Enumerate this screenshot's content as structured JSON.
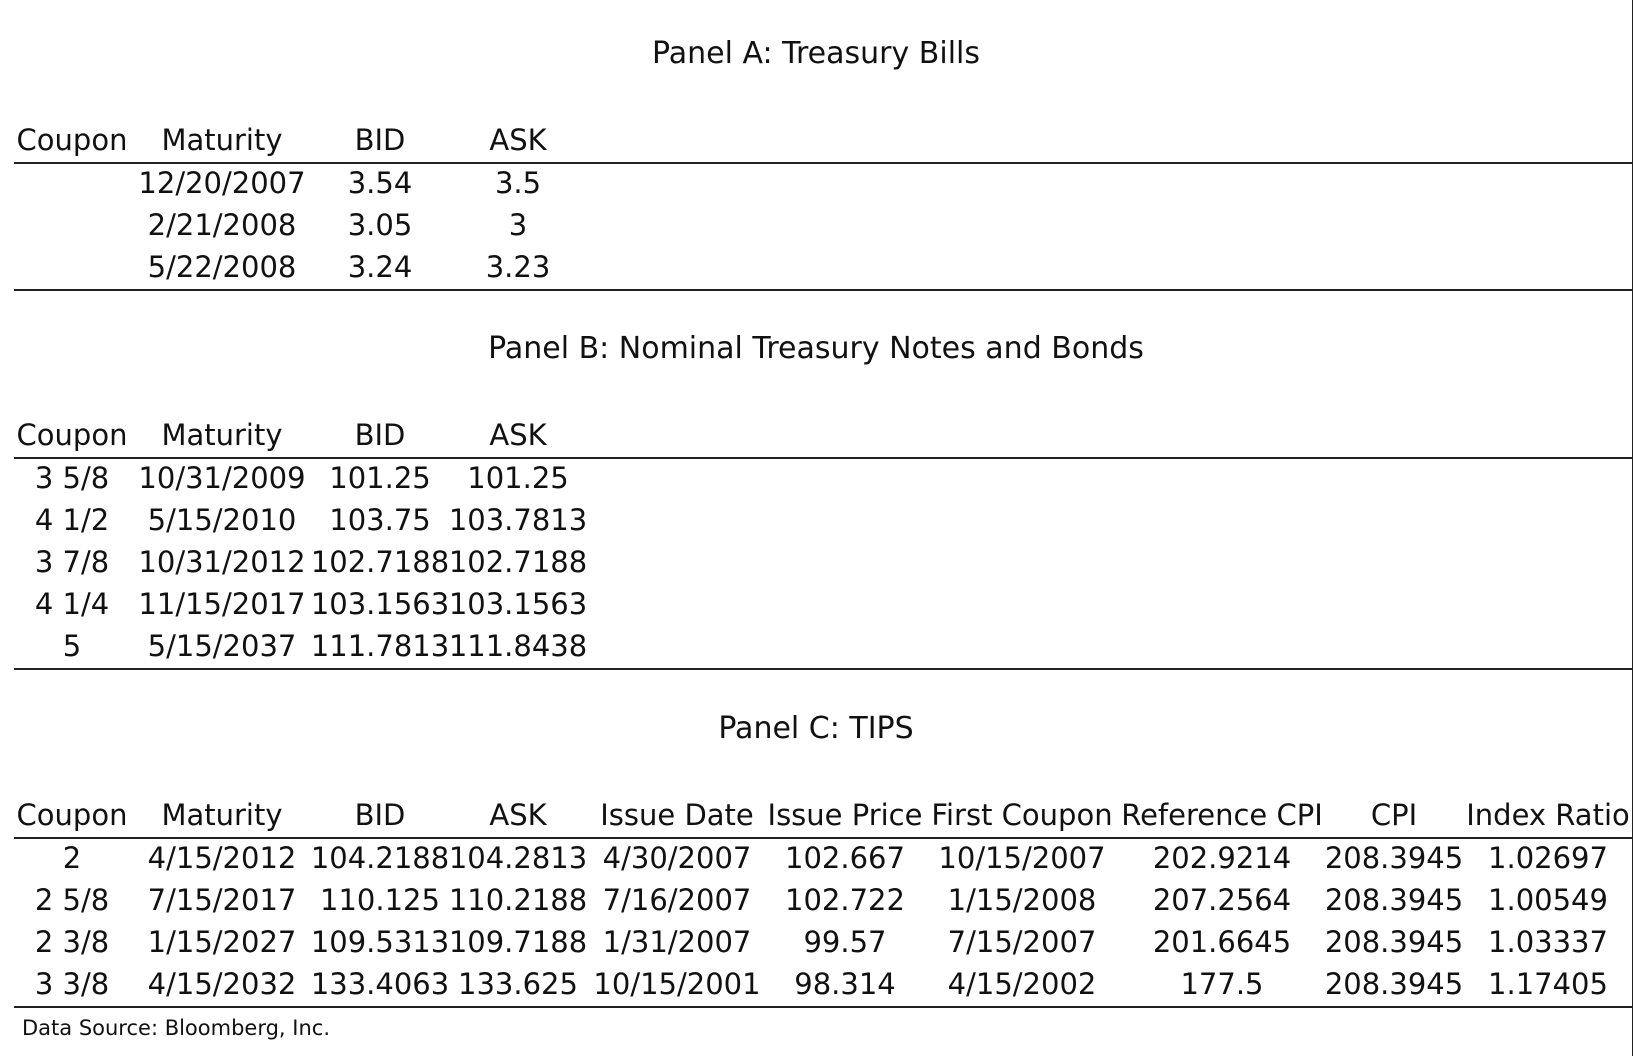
{
  "panels": [
    {
      "title": "Panel A: Treasury Bills",
      "headers": [
        "Coupon",
        "Maturity",
        "BID",
        "ASK"
      ],
      "rows": [
        [
          "",
          "12/20/2007",
          "3.54",
          "3.5"
        ],
        [
          "",
          "2/21/2008",
          "3.05",
          "3"
        ],
        [
          "",
          "5/22/2008",
          "3.24",
          "3.23"
        ]
      ]
    },
    {
      "title": "Panel B: Nominal Treasury Notes and Bonds",
      "headers": [
        "Coupon",
        "Maturity",
        "BID",
        "ASK"
      ],
      "rows": [
        [
          "3 5/8",
          "10/31/2009",
          "101.25",
          "101.25"
        ],
        [
          "4 1/2",
          "5/15/2010",
          "103.75",
          "103.7813"
        ],
        [
          "3 7/8",
          "10/31/2012",
          "102.7188",
          "102.7188"
        ],
        [
          "4 1/4",
          "11/15/2017",
          "103.1563",
          "103.1563"
        ],
        [
          "5",
          "5/15/2037",
          "111.7813",
          "111.8438"
        ]
      ]
    },
    {
      "title": "Panel C: TIPS",
      "headers": [
        "Coupon",
        "Maturity",
        "BID",
        "ASK",
        "Issue Date",
        "Issue Price",
        "First Coupon",
        "Reference CPI",
        "CPI",
        "Index Ratio"
      ],
      "rows": [
        [
          "2",
          "4/15/2012",
          "104.2188",
          "104.2813",
          "4/30/2007",
          "102.667",
          "10/15/2007",
          "202.9214",
          "208.3945",
          "1.02697"
        ],
        [
          "2 5/8",
          "7/15/2017",
          "110.125",
          "110.2188",
          "7/16/2007",
          "102.722",
          "1/15/2008",
          "207.2564",
          "208.3945",
          "1.00549"
        ],
        [
          "2 3/8",
          "1/15/2027",
          "109.5313",
          "109.7188",
          "1/31/2007",
          "99.57",
          "7/15/2007",
          "201.6645",
          "208.3945",
          "1.03337"
        ],
        [
          "3 3/8",
          "4/15/2032",
          "133.4063",
          "133.625",
          "10/15/2001",
          "98.314",
          "4/15/2002",
          "177.5",
          "208.3945",
          "1.17405"
        ]
      ]
    }
  ],
  "footer": "Data Source: Bloomberg, Inc."
}
